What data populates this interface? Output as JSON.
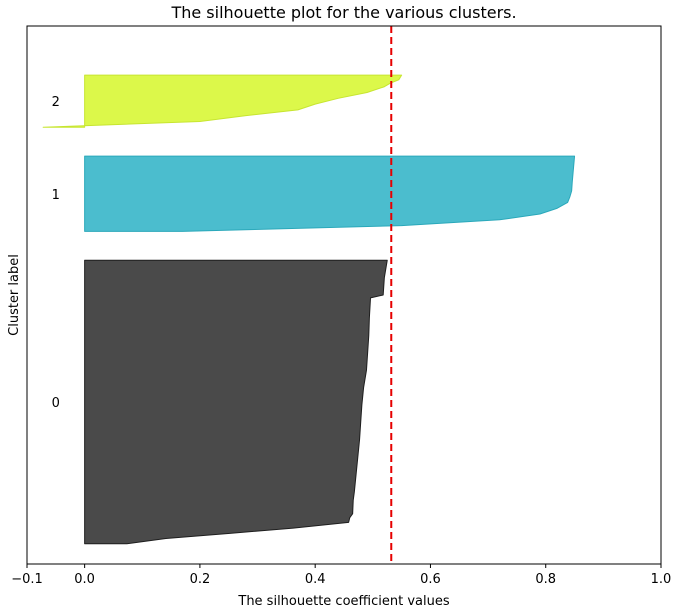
{
  "chart_data": {
    "type": "area",
    "title": "The silhouette plot for the various clusters.",
    "xlabel": "The silhouette coefficient values",
    "ylabel": "Cluster label",
    "xlim": [
      -0.1,
      1.0
    ],
    "xticks": [
      -0.1,
      0.0,
      0.2,
      0.4,
      0.6,
      0.8,
      1.0
    ],
    "xtick_labels": [
      "−0.1",
      "0.0",
      "0.2",
      "0.4",
      "0.6",
      "0.8",
      "1.0"
    ],
    "ylim": [
      0,
      93
    ],
    "yticks": [],
    "grid": false,
    "average_silhouette": 0.532,
    "reference_line_color": "#e60000",
    "clusters": [
      {
        "label": "0",
        "color": "#4a4a4a",
        "edge_color": "#1e1e1e",
        "y_lower": 3.5,
        "y_upper": 52.5,
        "profile": [
          [
            0.0,
            0.073
          ],
          [
            0.9,
            0.141
          ],
          [
            1.8,
            0.252
          ],
          [
            2.7,
            0.362
          ],
          [
            3.7,
            0.458
          ],
          [
            4.5,
            0.46
          ],
          [
            5.2,
            0.465
          ],
          [
            7.5,
            0.466
          ],
          [
            9.0,
            0.468
          ],
          [
            12.0,
            0.471
          ],
          [
            15.0,
            0.474
          ],
          [
            18.0,
            0.477
          ],
          [
            21.0,
            0.479
          ],
          [
            24.0,
            0.481
          ],
          [
            27.0,
            0.484
          ],
          [
            30.0,
            0.489
          ],
          [
            33.0,
            0.491
          ],
          [
            36.0,
            0.493
          ],
          [
            39.0,
            0.494
          ],
          [
            42.5,
            0.496
          ],
          [
            43.0,
            0.518
          ],
          [
            46.0,
            0.52
          ],
          [
            49.0,
            0.525
          ]
        ]
      },
      {
        "label": "1",
        "color": "#4bbdce",
        "edge_color": "#2aa8ba",
        "y_lower": 57.5,
        "y_upper": 70.5,
        "profile": [
          [
            0.0,
            0.17
          ],
          [
            1.0,
            0.55
          ],
          [
            2.0,
            0.72
          ],
          [
            3.0,
            0.79
          ],
          [
            4.0,
            0.82
          ],
          [
            5.0,
            0.838
          ],
          [
            6.0,
            0.842
          ],
          [
            7.0,
            0.845
          ],
          [
            8.5,
            0.846
          ],
          [
            13.0,
            0.85
          ]
        ]
      },
      {
        "label": "2",
        "color": "#dcf84a",
        "edge_color": "#c7e530",
        "y_lower": 75.5,
        "y_upper": 84.5,
        "profile": [
          [
            0.0,
            -0.072
          ],
          [
            1.0,
            0.2
          ],
          [
            2.0,
            0.28
          ],
          [
            3.0,
            0.37
          ],
          [
            4.0,
            0.4
          ],
          [
            5.0,
            0.44
          ],
          [
            6.0,
            0.49
          ],
          [
            7.0,
            0.52
          ],
          [
            7.6,
            0.53
          ],
          [
            8.2,
            0.545
          ],
          [
            9.0,
            0.55
          ]
        ]
      }
    ]
  }
}
